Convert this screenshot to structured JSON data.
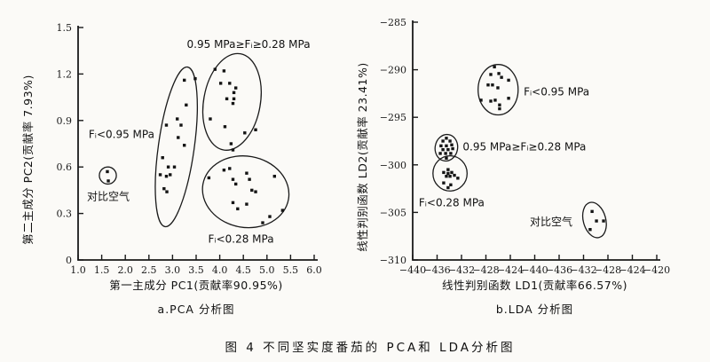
{
  "figure_caption": "图 4  不同坚实度番茄的 PCA和 LDA分析图",
  "colors": {
    "ink": "#1a1a1a",
    "paper": "#fbfaf7"
  },
  "chart_data": [
    {
      "id": "pca",
      "type": "scatter",
      "subplot_label": "a.PCA 分析图",
      "xlabel": "第一主成分 PC1(贡献率90.95%)",
      "ylabel": "第二主成分 PC2(贡献率 7.93%)",
      "xlim": [
        1.0,
        6.0
      ],
      "ylim": [
        0,
        1.5
      ],
      "grid": false,
      "xticks": {
        "values": [
          1.0,
          1.5,
          2.0,
          2.5,
          3.0,
          3.5,
          4.0,
          4.5,
          5.0,
          5.5,
          6.0
        ],
        "labels": [
          "1.0",
          "1.5",
          "2.0",
          "2.5",
          "3.0",
          "3.5",
          "4.0",
          "4.5",
          "5.0",
          "5.5",
          "6.0"
        ]
      },
      "yticks": {
        "values": [
          0,
          0.3,
          0.6,
          0.9,
          1.2,
          1.5
        ],
        "labels": [
          "0",
          "0.3",
          "0.6",
          "0.9",
          "1.2",
          "1.5"
        ]
      },
      "clusters": [
        {
          "name": "compare-air",
          "label": "对比空气",
          "label_pos": [
            1.64,
            0.41
          ],
          "label_anchor": "middle",
          "ellipse": {
            "cx": 1.63,
            "cy": 0.545,
            "rx": 0.18,
            "ry": 0.055,
            "rot": 0
          },
          "points": [
            [
              1.62,
              0.57
            ],
            [
              1.64,
              0.51
            ]
          ]
        },
        {
          "name": "firmness-lt-0.95MPa",
          "label": "Fᵢ<0.95 MPa",
          "label_pos": [
            1.92,
            0.81
          ],
          "label_anchor": "middle",
          "ellipse": {
            "cx": 3.08,
            "cy": 0.73,
            "rx": 0.38,
            "ry": 0.52,
            "rot": 8
          },
          "points": [
            [
              3.25,
              1.16
            ],
            [
              3.48,
              1.17
            ],
            [
              3.29,
              1.0
            ],
            [
              3.1,
              0.91
            ],
            [
              2.87,
              0.87
            ],
            [
              3.18,
              0.87
            ],
            [
              3.12,
              0.79
            ],
            [
              3.25,
              0.74
            ],
            [
              2.79,
              0.66
            ],
            [
              2.91,
              0.6
            ],
            [
              3.04,
              0.6
            ],
            [
              2.74,
              0.55
            ],
            [
              2.87,
              0.54
            ],
            [
              2.95,
              0.55
            ],
            [
              2.82,
              0.46
            ],
            [
              2.88,
              0.44
            ]
          ]
        },
        {
          "name": "firmness-mid-range",
          "label": "0.95 MPa≥Fᵢ≥0.28 MPa",
          "label_pos": [
            4.61,
            1.39
          ],
          "label_anchor": "middle",
          "ellipse": {
            "cx": 4.26,
            "cy": 1.02,
            "rx": 0.6,
            "ry": 0.315,
            "rot": 10
          },
          "points": [
            [
              3.9,
              1.23
            ],
            [
              4.09,
              1.22
            ],
            [
              4.21,
              1.14
            ],
            [
              4.02,
              1.14
            ],
            [
              4.34,
              1.11
            ],
            [
              4.3,
              1.08
            ],
            [
              4.15,
              1.04
            ],
            [
              4.3,
              1.04
            ],
            [
              4.28,
              1.01
            ],
            [
              3.8,
              0.91
            ],
            [
              4.11,
              0.86
            ],
            [
              4.53,
              0.82
            ],
            [
              4.76,
              0.84
            ],
            [
              4.24,
              0.75
            ],
            [
              4.28,
              0.71
            ]
          ]
        },
        {
          "name": "firmness-lt-0.28MPa",
          "label": "Fᵢ<0.28 MPa",
          "label_pos": [
            4.45,
            0.135
          ],
          "label_anchor": "middle",
          "ellipse": {
            "cx": 4.55,
            "cy": 0.44,
            "rx": 0.92,
            "ry": 0.23,
            "rot": 10
          },
          "points": [
            [
              4.09,
              0.58
            ],
            [
              4.21,
              0.59
            ],
            [
              4.57,
              0.56
            ],
            [
              3.77,
              0.53
            ],
            [
              4.28,
              0.52
            ],
            [
              4.63,
              0.52
            ],
            [
              4.34,
              0.49
            ],
            [
              5.16,
              0.54
            ],
            [
              4.68,
              0.45
            ],
            [
              4.76,
              0.44
            ],
            [
              4.28,
              0.37
            ],
            [
              4.57,
              0.36
            ],
            [
              4.38,
              0.33
            ],
            [
              5.33,
              0.32
            ],
            [
              5.06,
              0.28
            ],
            [
              4.91,
              0.24
            ]
          ]
        }
      ]
    },
    {
      "id": "lda",
      "type": "scatter",
      "subplot_label": "b.LDA 分析图",
      "xlabel": "线性判别函数 LD1(贡献率66.57%)",
      "ylabel": "线性判别函数 LD2(贡献率 23.41%)",
      "x_unit": "tick-index",
      "xlim": [
        0,
        10
      ],
      "ylim": [
        -310,
        -285
      ],
      "grid": false,
      "xticks": {
        "values": [
          0,
          1,
          2,
          3,
          4,
          5,
          6,
          7,
          8,
          9,
          10
        ],
        "labels": [
          "−440",
          "−436",
          "−432",
          "−428",
          "−424",
          "−440",
          "−436",
          "−432",
          "−428",
          "−424",
          "−420"
        ]
      },
      "yticks": {
        "values": [
          -310,
          -305,
          -300,
          -295,
          -290,
          -285
        ],
        "labels": [
          "−310",
          "−305",
          "−300",
          "−295",
          "−290",
          "−285"
        ]
      },
      "clusters": [
        {
          "name": "firmness-lt-0.95MPa",
          "label": "Fᵢ<0.95 MPa",
          "label_pos": [
            4.55,
            -292.3
          ],
          "label_anchor": "start",
          "ellipse": {
            "cx": 3.5,
            "cy": -292.1,
            "rx": 0.82,
            "ry": 2.65,
            "rot": 0
          },
          "points": [
            [
              3.35,
              -289.7
            ],
            [
              3.2,
              -290.5
            ],
            [
              3.53,
              -290.4
            ],
            [
              3.64,
              -290.8
            ],
            [
              3.93,
              -291.1
            ],
            [
              3.09,
              -291.6
            ],
            [
              3.27,
              -291.6
            ],
            [
              3.49,
              -291.9
            ],
            [
              2.8,
              -293.2
            ],
            [
              3.2,
              -293.3
            ],
            [
              3.38,
              -293.2
            ],
            [
              3.56,
              -293.7
            ],
            [
              3.93,
              -293.0
            ],
            [
              3.56,
              -294.1
            ]
          ]
        },
        {
          "name": "firmness-mid-range",
          "label": "0.95 MPa≥Fᵢ≥0.28 MPa",
          "label_pos": [
            2.05,
            -298.1
          ],
          "label_anchor": "start",
          "ellipse": {
            "cx": 1.38,
            "cy": -298.2,
            "rx": 0.46,
            "ry": 1.4,
            "rot": 10
          },
          "points": [
            [
              1.38,
              -297.2
            ],
            [
              1.24,
              -297.5
            ],
            [
              1.53,
              -297.5
            ],
            [
              1.16,
              -298.0
            ],
            [
              1.38,
              -298.0
            ],
            [
              1.6,
              -297.9
            ],
            [
              1.24,
              -298.4
            ],
            [
              1.45,
              -298.4
            ],
            [
              1.64,
              -298.3
            ],
            [
              1.13,
              -298.8
            ],
            [
              1.35,
              -298.8
            ],
            [
              1.56,
              -298.8
            ],
            [
              1.38,
              -299.3
            ]
          ]
        },
        {
          "name": "firmness-lt-0.28MPa",
          "label": "Fᵢ<0.28 MPa",
          "label_pos": [
            0.25,
            -304.0
          ],
          "label_anchor": "start",
          "ellipse": {
            "cx": 1.53,
            "cy": -300.9,
            "rx": 0.7,
            "ry": 1.85,
            "rot": 0
          },
          "points": [
            [
              1.45,
              -300.5
            ],
            [
              1.27,
              -300.8
            ],
            [
              1.45,
              -300.9
            ],
            [
              1.6,
              -300.8
            ],
            [
              1.38,
              -301.2
            ],
            [
              1.53,
              -301.2
            ],
            [
              1.71,
              -301.1
            ],
            [
              1.27,
              -301.9
            ],
            [
              1.85,
              -301.4
            ],
            [
              1.56,
              -302.1
            ],
            [
              1.45,
              -302.4
            ]
          ]
        },
        {
          "name": "compare-air",
          "label": "对比空气",
          "label_pos": [
            4.8,
            -306.0
          ],
          "label_anchor": "start",
          "ellipse": {
            "cx": 7.45,
            "cy": -305.8,
            "rx": 0.46,
            "ry": 1.9,
            "rot": -15
          },
          "points": [
            [
              7.35,
              -304.9
            ],
            [
              7.53,
              -305.9
            ],
            [
              7.82,
              -305.9
            ],
            [
              7.27,
              -306.8
            ]
          ]
        }
      ]
    }
  ]
}
